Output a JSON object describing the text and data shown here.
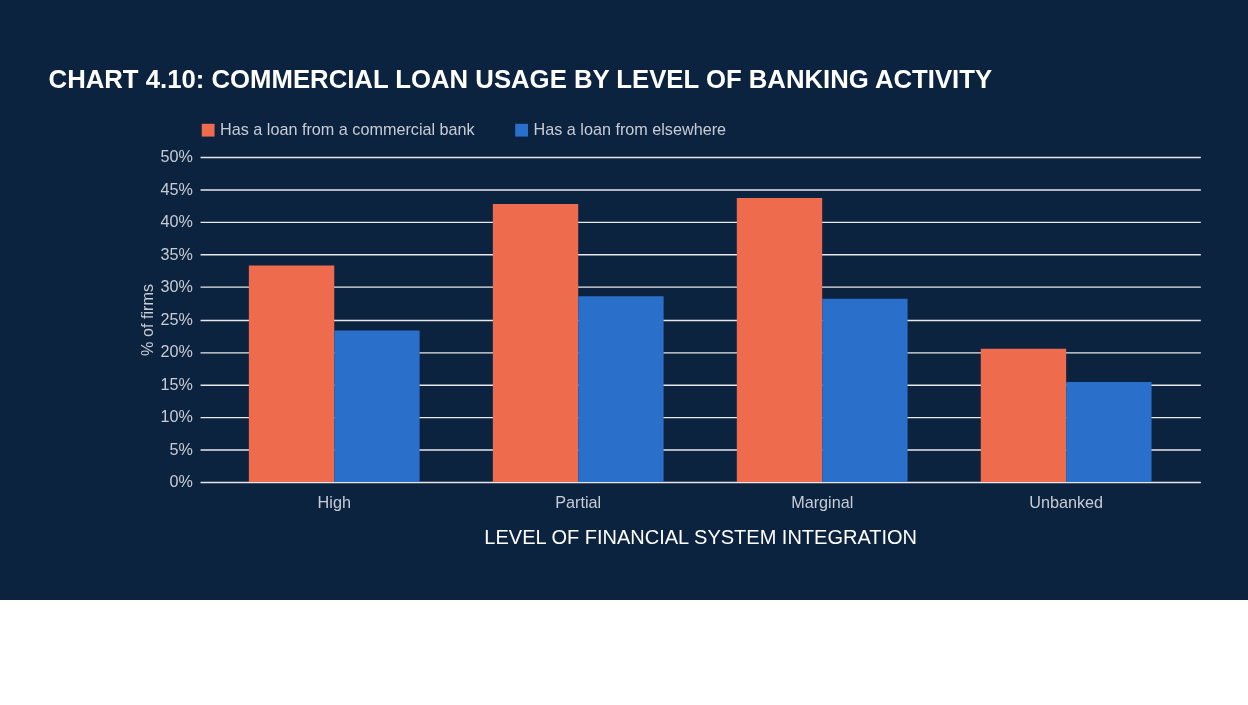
{
  "chart_data": {
    "type": "bar",
    "title": "CHART 4.10: COMMERCIAL LOAN USAGE BY LEVEL OF BANKING ACTIVITY",
    "xlabel": "LEVEL OF FINANCIAL SYSTEM INTEGRATION",
    "ylabel": "% of firms",
    "categories": [
      "High",
      "Partial",
      "Marginal",
      "Unbanked"
    ],
    "series": [
      {
        "name": "Has a loan from a commercial bank",
        "color": "#ee6c4d",
        "values": [
          33.3,
          42.8,
          43.7,
          20.5
        ]
      },
      {
        "name": "Has a loan from elsewhere",
        "color": "#2a6fc9",
        "values": [
          23.3,
          28.6,
          28.2,
          15.4
        ]
      }
    ],
    "ylim": [
      0,
      50
    ],
    "yticks": [
      {
        "value": 0,
        "label": "0%"
      },
      {
        "value": 5,
        "label": "5%"
      },
      {
        "value": 10,
        "label": "10%"
      },
      {
        "value": 15,
        "label": "15%"
      },
      {
        "value": 20,
        "label": "20%"
      },
      {
        "value": 25,
        "label": "25%"
      },
      {
        "value": 30,
        "label": "30%"
      },
      {
        "value": 35,
        "label": "35%"
      },
      {
        "value": 40,
        "label": "40%"
      },
      {
        "value": 45,
        "label": "45%"
      },
      {
        "value": 50,
        "label": "50%"
      }
    ],
    "grid": "y",
    "legend": "top"
  }
}
